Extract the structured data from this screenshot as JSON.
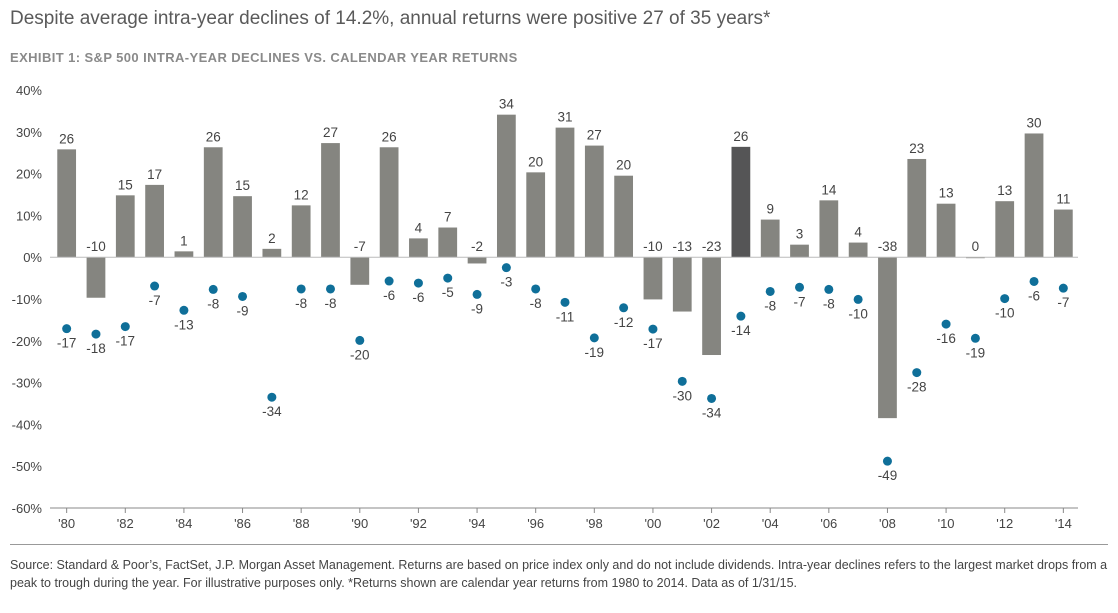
{
  "title": "Despite average intra-year declines of 14.2%, annual returns were positive 27 of 35 years*",
  "subtitle": "EXHIBIT 1: S&P 500 INTRA-YEAR DECLINES VS. CALENDAR YEAR RETURNS",
  "footer": "Source: Standard & Poor’s, FactSet, J.P. Morgan Asset Management. Returns are based on price index only and do not include dividends. Intra-year declines refers to the largest market drops from a peak to trough during the year. For illustrative purposes only. *Returns shown are calendar year returns from 1980 to 2014. Data as of 1/31/15.",
  "colors": {
    "bar": "#858580",
    "bar_highlight": "#555556",
    "dot": "#0f6f99",
    "axis": "#888888"
  },
  "chart_data": {
    "type": "bar",
    "categories": [
      "1980",
      "1981",
      "1982",
      "1983",
      "1984",
      "1985",
      "1986",
      "1987",
      "1988",
      "1989",
      "1990",
      "1991",
      "1992",
      "1993",
      "1994",
      "1995",
      "1996",
      "1997",
      "1998",
      "1999",
      "2000",
      "2001",
      "2002",
      "2003",
      "2004",
      "2005",
      "2006",
      "2007",
      "2008",
      "2009",
      "2010",
      "2011",
      "2012",
      "2013",
      "2014"
    ],
    "x_tick_labels": [
      "'80",
      "'82",
      "'84",
      "'86",
      "'88",
      "'90",
      "'92",
      "'94",
      "'96",
      "'98",
      "'00",
      "'02",
      "'04",
      "'06",
      "'08",
      "'10",
      "'12",
      "'14"
    ],
    "y_tick_labels": [
      "40%",
      "30%",
      "20%",
      "10%",
      "0%",
      "-10%",
      "-20%",
      "-30%",
      "-40%",
      "-50%",
      "-60%"
    ],
    "ylim": [
      -60,
      40
    ],
    "highlight_index": 23,
    "series": [
      {
        "type": "bar",
        "values": [
          25.8,
          -9.7,
          14.8,
          17.3,
          1.4,
          26.3,
          14.6,
          2.0,
          12.4,
          27.3,
          -6.6,
          26.3,
          4.5,
          7.1,
          -1.5,
          34.1,
          20.3,
          31.0,
          26.7,
          19.5,
          -10.1,
          -13.0,
          -23.4,
          26.4,
          9.0,
          3.0,
          13.6,
          3.5,
          -38.5,
          23.5,
          12.8,
          -0.2,
          13.4,
          29.6,
          11.4
        ],
        "labels": [
          "26",
          "-10",
          "15",
          "17",
          "1",
          "26",
          "15",
          "2",
          "12",
          "27",
          "-7",
          "26",
          "4",
          "7",
          "-2",
          "34",
          "20",
          "31",
          "27",
          "20",
          "-10",
          "-13",
          "-23",
          "26",
          "9",
          "3",
          "14",
          "4",
          "-38",
          "23",
          "13",
          "0",
          "13",
          "30",
          "11"
        ]
      },
      {
        "type": "scatter",
        "values": [
          -17.1,
          -18.4,
          -16.6,
          -6.9,
          -12.7,
          -7.7,
          -9.4,
          -33.5,
          -7.6,
          -7.6,
          -19.9,
          -5.7,
          -6.2,
          -5.0,
          -8.9,
          -2.5,
          -7.6,
          -10.8,
          -19.3,
          -12.1,
          -17.2,
          -29.7,
          -33.8,
          -14.1,
          -8.2,
          -7.2,
          -7.7,
          -10.1,
          -48.8,
          -27.6,
          -16.0,
          -19.4,
          -9.9,
          -5.8,
          -7.4
        ],
        "labels": [
          "-17",
          "-18",
          "-17",
          "-7",
          "-13",
          "-8",
          "-9",
          "-34",
          "-8",
          "-8",
          "-20",
          "-6",
          "-6",
          "-5",
          "-9",
          "-3",
          "-8",
          "-11",
          "-19",
          "-12",
          "-17",
          "-30",
          "-34",
          "-14",
          "-8",
          "-7",
          "-8",
          "-10",
          "-49",
          "-28",
          "-16",
          "-19",
          "-10",
          "-6",
          "-7"
        ]
      }
    ]
  }
}
